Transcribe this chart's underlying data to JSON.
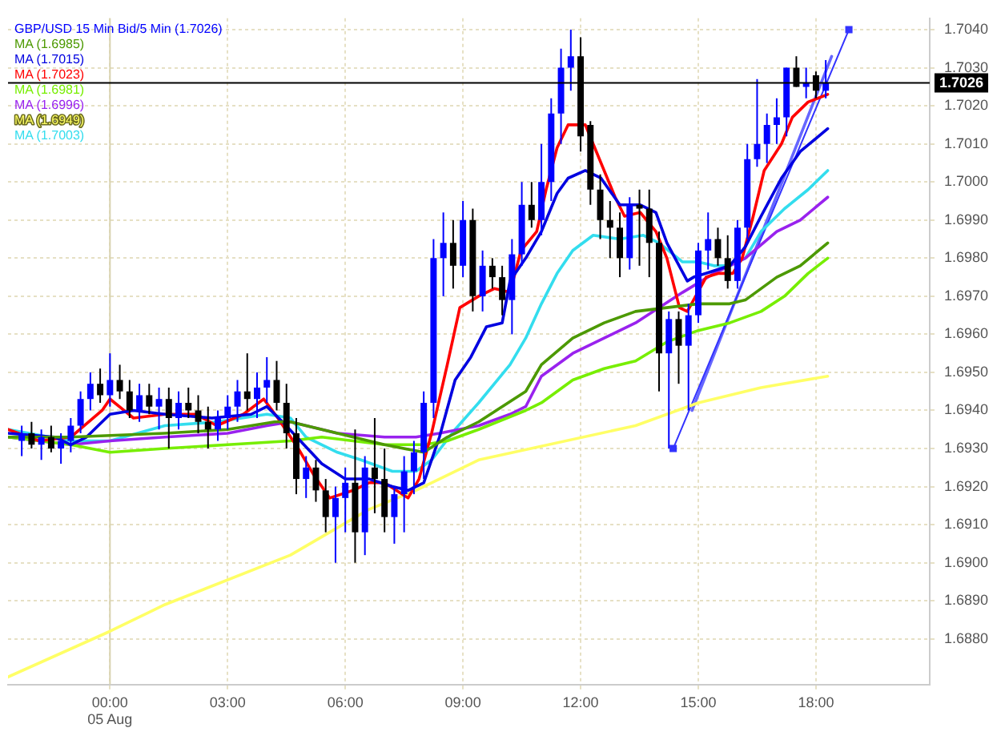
{
  "chart_data": {
    "type": "candlestick",
    "legend": "top left",
    "grid": true,
    "xlim": [
      -2.6,
      20.9
    ],
    "ylim": [
      1.6868,
      1.7043
    ],
    "xticks": [
      {
        "value": 0,
        "label": "00:00\n05 Aug"
      },
      {
        "value": 3,
        "label": "03:00"
      },
      {
        "value": 6,
        "label": "06:00"
      },
      {
        "value": 9,
        "label": "09:00"
      },
      {
        "value": 12,
        "label": "12:00"
      },
      {
        "value": 15,
        "label": "15:00"
      },
      {
        "value": 18,
        "label": "18:00"
      }
    ],
    "yticks": [
      {
        "value": 1.688,
        "label": "1.6880"
      },
      {
        "value": 1.689,
        "label": "1.6890"
      },
      {
        "value": 1.69,
        "label": "1.6900"
      },
      {
        "value": 1.691,
        "label": "1.6910"
      },
      {
        "value": 1.692,
        "label": "1.6920"
      },
      {
        "value": 1.693,
        "label": "1.6930"
      },
      {
        "value": 1.694,
        "label": "1.6940"
      },
      {
        "value": 1.695,
        "label": "1.6950"
      },
      {
        "value": 1.696,
        "label": "1.6960"
      },
      {
        "value": 1.697,
        "label": "1.6970"
      },
      {
        "value": 1.698,
        "label": "1.6980"
      },
      {
        "value": 1.699,
        "label": "1.6990"
      },
      {
        "value": 1.7,
        "label": "1.7000"
      },
      {
        "value": 1.701,
        "label": "1.7010"
      },
      {
        "value": 1.702,
        "label": "1.7020"
      },
      {
        "value": 1.703,
        "label": "1.7030"
      },
      {
        "value": 1.704,
        "label": "1.7040"
      }
    ],
    "ref_lines": [
      {
        "axis": "x",
        "value": 0,
        "color": "#d8d2b0"
      },
      {
        "axis": "y",
        "value": 1.7026,
        "label": "1.7026",
        "color": "#000000"
      }
    ],
    "series": [
      {
        "name": "GBP/USD 15 Min Bid/5 Min (1.7026)",
        "color": "#0000ff",
        "colors": [
          "#0000ff",
          "#000000",
          "#0000ff",
          "#000000",
          "#0000ff",
          "#0000ff",
          "#0000ff",
          "#0000ff",
          "#000000",
          "#0000ff",
          "#000000",
          "#000000",
          "#0000ff",
          "#000000",
          "#0000ff",
          "#000000",
          "#0000ff",
          "#000000",
          "#000000",
          "#000000",
          "#0000ff",
          "#0000ff",
          "#0000ff",
          "#000000",
          "#0000ff",
          "#0000ff",
          "#000000",
          "#000000",
          "#000000",
          "#0000ff",
          "#000000",
          "#000000",
          "#0000ff",
          "#0000ff",
          "#000000",
          "#0000ff",
          "#000000",
          "#000000",
          "#0000ff",
          "#0000ff",
          "#0000ff",
          "#0000ff",
          "#0000ff",
          "#0000ff",
          "#000000",
          "#0000ff",
          "#000000",
          "#0000ff",
          "#000000",
          "#000000",
          "#0000ff",
          "#0000ff",
          "#000000",
          "#0000ff",
          "#0000ff",
          "#0000ff",
          "#0000ff",
          "#000000",
          "#000000",
          "#000000",
          "#000000",
          "#000000",
          "#0000ff",
          "#000000",
          "#000000",
          "#000000",
          "#0000ff",
          "#000000",
          "#0000ff",
          "#0000ff",
          "#0000ff",
          "#000000",
          "#000000",
          "#0000ff",
          "#0000ff",
          "#0000ff",
          "#0000ff",
          "#0000ff",
          "#0000ff",
          "#000000",
          "#0000ff",
          "#000000",
          "#0000ff"
        ],
        "x": [
          -2.25,
          -2,
          -1.75,
          -1.5,
          -1.25,
          -1,
          -0.75,
          -0.5,
          -0.25,
          0,
          0.25,
          0.5,
          0.75,
          1,
          1.25,
          1.5,
          1.75,
          2,
          2.25,
          2.5,
          2.75,
          3,
          3.25,
          3.5,
          3.75,
          4,
          4.25,
          4.5,
          4.75,
          5,
          5.25,
          5.5,
          5.75,
          6,
          6.25,
          6.5,
          6.75,
          7,
          7.25,
          7.5,
          7.75,
          8,
          8.25,
          8.5,
          8.75,
          9,
          9.25,
          9.5,
          9.75,
          10,
          10.25,
          10.5,
          10.75,
          11,
          11.25,
          11.5,
          11.75,
          12,
          12.25,
          12.5,
          12.75,
          13,
          13.25,
          13.5,
          13.75,
          14,
          14.25,
          14.5,
          14.75,
          15,
          15.25,
          15.5,
          15.75,
          16,
          16.25,
          16.5,
          16.75,
          17,
          17.25,
          17.5,
          17.75,
          18,
          18.25
        ],
        "ohlc": [
          [
            1.6932,
            1.6936,
            1.6928,
            1.6934
          ],
          [
            1.6934,
            1.6937,
            1.693,
            1.6931
          ],
          [
            1.6931,
            1.6935,
            1.6927,
            1.6933
          ],
          [
            1.6933,
            1.6936,
            1.6929,
            1.693
          ],
          [
            1.693,
            1.6934,
            1.6926,
            1.6932
          ],
          [
            1.6932,
            1.6938,
            1.6929,
            1.6936
          ],
          [
            1.6936,
            1.6945,
            1.6934,
            1.6943
          ],
          [
            1.6943,
            1.695,
            1.694,
            1.6947
          ],
          [
            1.6947,
            1.6951,
            1.6942,
            1.6944
          ],
          [
            1.6944,
            1.6955,
            1.6941,
            1.6948
          ],
          [
            1.6948,
            1.6952,
            1.6943,
            1.6945
          ],
          [
            1.6945,
            1.6948,
            1.6938,
            1.694
          ],
          [
            1.694,
            1.6947,
            1.6937,
            1.6944
          ],
          [
            1.6944,
            1.6947,
            1.6939,
            1.6941
          ],
          [
            1.6941,
            1.6946,
            1.6935,
            1.6943
          ],
          [
            1.6943,
            1.6946,
            1.693,
            1.6938
          ],
          [
            1.6938,
            1.6945,
            1.6935,
            1.6942
          ],
          [
            1.6942,
            1.6946,
            1.6938,
            1.694
          ],
          [
            1.694,
            1.6944,
            1.6934,
            1.6937
          ],
          [
            1.6937,
            1.6941,
            1.693,
            1.6935
          ],
          [
            1.6935,
            1.694,
            1.6932,
            1.6938
          ],
          [
            1.6938,
            1.6944,
            1.6935,
            1.6941
          ],
          [
            1.6941,
            1.6948,
            1.6937,
            1.6945
          ],
          [
            1.6945,
            1.6955,
            1.694,
            1.6943
          ],
          [
            1.6943,
            1.695,
            1.6938,
            1.6946
          ],
          [
            1.6946,
            1.6954,
            1.6942,
            1.6948
          ],
          [
            1.6948,
            1.6953,
            1.694,
            1.6942
          ],
          [
            1.6942,
            1.6947,
            1.693,
            1.6934
          ],
          [
            1.6934,
            1.6938,
            1.6918,
            1.6922
          ],
          [
            1.6922,
            1.6928,
            1.6917,
            1.6925
          ],
          [
            1.6925,
            1.6927,
            1.6916,
            1.6919
          ],
          [
            1.6919,
            1.6922,
            1.6908,
            1.6912
          ],
          [
            1.6912,
            1.692,
            1.69,
            1.6917
          ],
          [
            1.6917,
            1.6925,
            1.6908,
            1.6921
          ],
          [
            1.6921,
            1.6935,
            1.69,
            1.6908
          ],
          [
            1.6908,
            1.6928,
            1.6902,
            1.6925
          ],
          [
            1.6925,
            1.6938,
            1.6913,
            1.6922
          ],
          [
            1.6922,
            1.693,
            1.6908,
            1.6912
          ],
          [
            1.6912,
            1.692,
            1.6905,
            1.6918
          ],
          [
            1.6918,
            1.6928,
            1.6908,
            1.6924
          ],
          [
            1.6924,
            1.6932,
            1.6918,
            1.6929
          ],
          [
            1.6929,
            1.6945,
            1.6922,
            1.6942
          ],
          [
            1.6942,
            1.6985,
            1.6938,
            1.698
          ],
          [
            1.698,
            1.6992,
            1.697,
            1.6984
          ],
          [
            1.6984,
            1.699,
            1.6972,
            1.6978
          ],
          [
            1.6978,
            1.6995,
            1.6975,
            1.699
          ],
          [
            1.699,
            1.6993,
            1.6966,
            1.697
          ],
          [
            1.697,
            1.6982,
            1.6966,
            1.6978
          ],
          [
            1.6978,
            1.698,
            1.6972,
            1.6975
          ],
          [
            1.6975,
            1.6978,
            1.6965,
            1.6969
          ],
          [
            1.6969,
            1.6985,
            1.696,
            1.6981
          ],
          [
            1.6981,
            1.7,
            1.6978,
            1.6994
          ],
          [
            1.6994,
            1.7,
            1.6988,
            1.699
          ],
          [
            1.699,
            1.701,
            1.6986,
            1.7
          ],
          [
            1.7,
            1.7022,
            1.6995,
            1.7018
          ],
          [
            1.7018,
            1.7035,
            1.701,
            1.703
          ],
          [
            1.703,
            1.704,
            1.7024,
            1.7033
          ],
          [
            1.7033,
            1.7038,
            1.7008,
            1.7012
          ],
          [
            1.7015,
            1.7016,
            1.6994,
            1.6998
          ],
          [
            1.6998,
            1.7002,
            1.6985,
            1.699
          ],
          [
            1.699,
            1.6995,
            1.698,
            1.6988
          ],
          [
            1.6988,
            1.6992,
            1.6975,
            1.698
          ],
          [
            1.698,
            1.6996,
            1.6977,
            1.6994
          ],
          [
            1.6994,
            1.6998,
            1.6978,
            1.6993
          ],
          [
            1.6993,
            1.6998,
            1.6975,
            1.6984
          ],
          [
            1.6984,
            1.6987,
            1.6945,
            1.6955
          ],
          [
            1.6955,
            1.6966,
            1.693,
            1.6964
          ],
          [
            1.6964,
            1.6966,
            1.6947,
            1.6957
          ],
          [
            1.6957,
            1.6968,
            1.694,
            1.6965
          ],
          [
            1.6965,
            1.6984,
            1.6963,
            1.6982
          ],
          [
            1.6982,
            1.6992,
            1.6977,
            1.6985
          ],
          [
            1.6985,
            1.6988,
            1.6978,
            1.698
          ],
          [
            1.698,
            1.6986,
            1.6972,
            1.6974
          ],
          [
            1.6974,
            1.699,
            1.6972,
            1.6988
          ],
          [
            1.6988,
            1.701,
            1.6985,
            1.7006
          ],
          [
            1.7006,
            1.7027,
            1.7004,
            1.701
          ],
          [
            1.701,
            1.7018,
            1.7005,
            1.7015
          ],
          [
            1.7015,
            1.7022,
            1.701,
            1.7017
          ],
          [
            1.7017,
            1.703,
            1.7012,
            1.703
          ],
          [
            1.703,
            1.7033,
            1.7025,
            1.7025
          ],
          [
            1.7025,
            1.703,
            1.7022,
            1.7026
          ],
          [
            1.7028,
            1.7029,
            1.7022,
            1.7024
          ],
          [
            1.7024,
            1.7032,
            1.7022,
            1.7026
          ]
        ]
      },
      {
        "type": "line",
        "name": "MA (1.6985)",
        "color": "#4c9900",
        "x": [
          -2.6,
          -1,
          1.4,
          3,
          4.2,
          4.6,
          5.4,
          7,
          8,
          8.6,
          9.4,
          10.6,
          11,
          11.8,
          12.6,
          13.4,
          14.2,
          15,
          15.8,
          16.2,
          17,
          17.6,
          18.3
        ],
        "values": [
          1.6933,
          1.6933,
          1.6934,
          1.6935,
          1.6937,
          1.6937,
          1.6935,
          1.6931,
          1.6929,
          1.6933,
          1.6937,
          1.6945,
          1.6952,
          1.6959,
          1.6963,
          1.6966,
          1.6967,
          1.6968,
          1.6968,
          1.6969,
          1.6975,
          1.6978,
          1.6984
        ]
      },
      {
        "type": "line",
        "name": "MA (1.7015)",
        "color": "#0000e0",
        "x": [
          -2.6,
          -1.4,
          -1,
          -0.6,
          0,
          0.6,
          1.4,
          2.6,
          3.6,
          4,
          4.4,
          5.4,
          6,
          6.6,
          7.2,
          7.6,
          8,
          8.4,
          8.8,
          9.2,
          9.6,
          10,
          10.2,
          10.6,
          11,
          11.4,
          11.68,
          12.12,
          12.52,
          13,
          13.52,
          13.92,
          14.2,
          14.72,
          14.88,
          15.2,
          15.8,
          16.2,
          16.6,
          17.12,
          17.6,
          18.3
        ],
        "values": [
          1.6934,
          1.6933,
          1.6931,
          1.6933,
          1.6939,
          1.694,
          1.6939,
          1.6938,
          1.6939,
          1.6941,
          1.6937,
          1.6926,
          1.6922,
          1.6922,
          1.692,
          1.6919,
          1.6921,
          1.6933,
          1.6948,
          1.6954,
          1.6962,
          1.6963,
          1.6974,
          1.698,
          1.6987,
          1.6997,
          1.7001,
          1.7003,
          1.7001,
          1.6994,
          1.6994,
          1.6992,
          1.6984,
          1.6974,
          1.6975,
          1.6976,
          1.6978,
          1.6983,
          1.6991,
          1.7001,
          1.7008,
          1.7014
        ]
      },
      {
        "type": "line",
        "name": "MA (1.7023)",
        "color": "#ff0000",
        "x": [
          -2.6,
          -1.8,
          -1,
          -0.2,
          0,
          0.6,
          1.4,
          2.2,
          2.72,
          3.4,
          3.92,
          4.28,
          4.8,
          5.2,
          5.6,
          6.2,
          6.6,
          7,
          7.6,
          7.88,
          8.2,
          8.6,
          8.92,
          9.4,
          9.8,
          10.2,
          10.48,
          10.88,
          11.12,
          11.4,
          11.68,
          12.12,
          12.32,
          12.88,
          13.12,
          13.52,
          13.92,
          14.2,
          14.52,
          14.72,
          14.88,
          15.2,
          15.52,
          15.88,
          16.12,
          16.4,
          16.68,
          17.12,
          17.4,
          17.8,
          18.3
        ],
        "values": [
          1.6935,
          1.6932,
          1.6933,
          1.694,
          1.6943,
          1.6938,
          1.6939,
          1.6939,
          1.6936,
          1.6939,
          1.6943,
          1.6938,
          1.693,
          1.6923,
          1.6917,
          1.6919,
          1.6921,
          1.6921,
          1.6917,
          1.6922,
          1.6934,
          1.6952,
          1.6967,
          1.697,
          1.6972,
          1.6971,
          1.6982,
          1.6987,
          1.6998,
          1.7009,
          1.7015,
          1.7015,
          1.701,
          1.6996,
          1.6991,
          1.6992,
          1.6987,
          1.698,
          1.6967,
          1.6966,
          1.6969,
          1.6975,
          1.6976,
          1.6976,
          1.698,
          1.6991,
          1.7003,
          1.701,
          1.7017,
          1.7021,
          1.7023
        ]
      },
      {
        "type": "line",
        "name": "MA (1.6981)",
        "color": "#77ee00",
        "x": [
          -2.6,
          -1,
          0,
          1.4,
          3,
          4.6,
          5.4,
          7,
          8,
          8.6,
          9.4,
          10.6,
          11,
          11.8,
          12.6,
          13.4,
          14.2,
          15,
          15.8,
          16.6,
          17.2,
          17.8,
          18.3
        ],
        "values": [
          1.6933,
          1.6931,
          1.6929,
          1.693,
          1.6931,
          1.6932,
          1.6933,
          1.6931,
          1.6931,
          1.6932,
          1.6935,
          1.694,
          1.6942,
          1.6948,
          1.6951,
          1.6953,
          1.6958,
          1.6961,
          1.6963,
          1.6966,
          1.697,
          1.6976,
          1.698
        ]
      },
      {
        "type": "line",
        "name": "MA (1.6996)",
        "color": "#9922ee",
        "x": [
          -2.6,
          -1,
          0,
          1.4,
          3,
          4,
          4.6,
          5.8,
          7,
          7.8,
          8.4,
          9.4,
          10.2,
          10.6,
          11,
          11.8,
          12.6,
          13.4,
          14.6,
          15.4,
          16.2,
          17,
          17.6,
          18.3
        ],
        "values": [
          1.6933,
          1.6931,
          1.6932,
          1.6933,
          1.6934,
          1.6936,
          1.6937,
          1.6934,
          1.6933,
          1.6933,
          1.6934,
          1.6936,
          1.6939,
          1.6941,
          1.6949,
          1.6955,
          1.6959,
          1.6963,
          1.6971,
          1.6976,
          1.698,
          1.6987,
          1.699,
          1.6996
        ]
      },
      {
        "type": "line",
        "name": "MA (1.6949)",
        "color": "#ffff66",
        "x": [
          -2.6,
          0,
          1.4,
          4.6,
          6.6,
          7.8,
          9.4,
          13.4,
          15,
          16.6,
          18.3
        ],
        "values": [
          1.687,
          1.6882,
          1.6889,
          1.6902,
          1.6914,
          1.6919,
          1.6927,
          1.6936,
          1.6942,
          1.6946,
          1.6949
        ]
      },
      {
        "type": "line",
        "name": "MA (1.7003)",
        "color": "#33ddee",
        "x": [
          -2.6,
          -1,
          0,
          1.4,
          2.72,
          4,
          4.6,
          5,
          5.8,
          6.4,
          7.2,
          7.8,
          8.2,
          8.8,
          9.4,
          10.2,
          10.6,
          11,
          11.4,
          11.8,
          12.32,
          13,
          13.6,
          14,
          14.6,
          15,
          15.4,
          15.8,
          16.2,
          16.6,
          17.2,
          17.8,
          18.3
        ],
        "values": [
          1.6935,
          1.6932,
          1.6932,
          1.6936,
          1.6937,
          1.6939,
          1.6938,
          1.6933,
          1.6929,
          1.6927,
          1.6924,
          1.6924,
          1.6927,
          1.6935,
          1.6942,
          1.6952,
          1.6959,
          1.6968,
          1.6976,
          1.6982,
          1.6986,
          1.6985,
          1.6986,
          1.6984,
          1.6979,
          1.6979,
          1.6978,
          1.6978,
          1.698,
          1.6987,
          1.6993,
          1.6998,
          1.7003
        ]
      },
      {
        "type": "line",
        "color": "#3333ff",
        "marker": "square",
        "x": [
          14.36,
          18.84
        ],
        "values": [
          1.693,
          1.704
        ]
      },
      {
        "type": "line",
        "color": "#6666ff",
        "x": [
          14.84,
          18.4
        ],
        "values": [
          1.694,
          1.7033
        ]
      }
    ]
  }
}
